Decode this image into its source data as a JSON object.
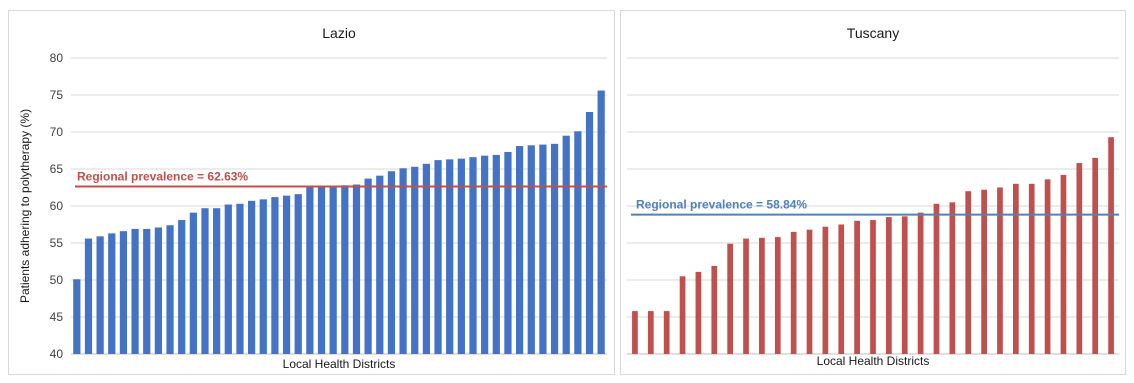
{
  "chart_data": [
    {
      "type": "bar",
      "title": "Lazio",
      "xlabel": "Local Health Districts",
      "ylabel": "Patients adhering to polytherapy (%)",
      "ylim": [
        40,
        80
      ],
      "yticks": [
        40,
        45,
        50,
        55,
        60,
        65,
        70,
        75,
        80
      ],
      "grid": true,
      "bar_color": "#4472c4",
      "values": [
        50.1,
        55.6,
        55.9,
        56.3,
        56.6,
        56.9,
        56.9,
        57.1,
        57.4,
        58.1,
        59.1,
        59.7,
        59.7,
        60.2,
        60.3,
        60.7,
        60.9,
        61.2,
        61.4,
        61.6,
        62.5,
        62.6,
        62.6,
        62.8,
        62.9,
        63.7,
        64.1,
        64.7,
        65.1,
        65.3,
        65.7,
        66.2,
        66.3,
        66.4,
        66.6,
        66.8,
        66.9,
        67.3,
        68.1,
        68.2,
        68.3,
        68.4,
        69.5,
        70.1,
        72.7,
        75.6
      ],
      "reference_line": {
        "label": "Regional prevalence = 62.63%",
        "value": 62.63,
        "color": "#c0504d"
      }
    },
    {
      "type": "bar",
      "title": "Tuscany",
      "xlabel": "Local Health Districts",
      "ylim": [
        40,
        80
      ],
      "grid": true,
      "bar_color": "#c0504d",
      "values": [
        45.8,
        45.8,
        45.8,
        50.5,
        51.1,
        51.9,
        54.9,
        55.6,
        55.7,
        55.8,
        56.5,
        56.8,
        57.2,
        57.5,
        58.0,
        58.1,
        58.5,
        58.6,
        59.1,
        60.3,
        60.5,
        62.0,
        62.2,
        62.5,
        63.0,
        63.0,
        63.6,
        64.2,
        65.8,
        66.5,
        69.3
      ],
      "reference_line": {
        "label": "Regional prevalence = 58.84%",
        "value": 58.84,
        "color": "#4f81bd"
      }
    }
  ]
}
